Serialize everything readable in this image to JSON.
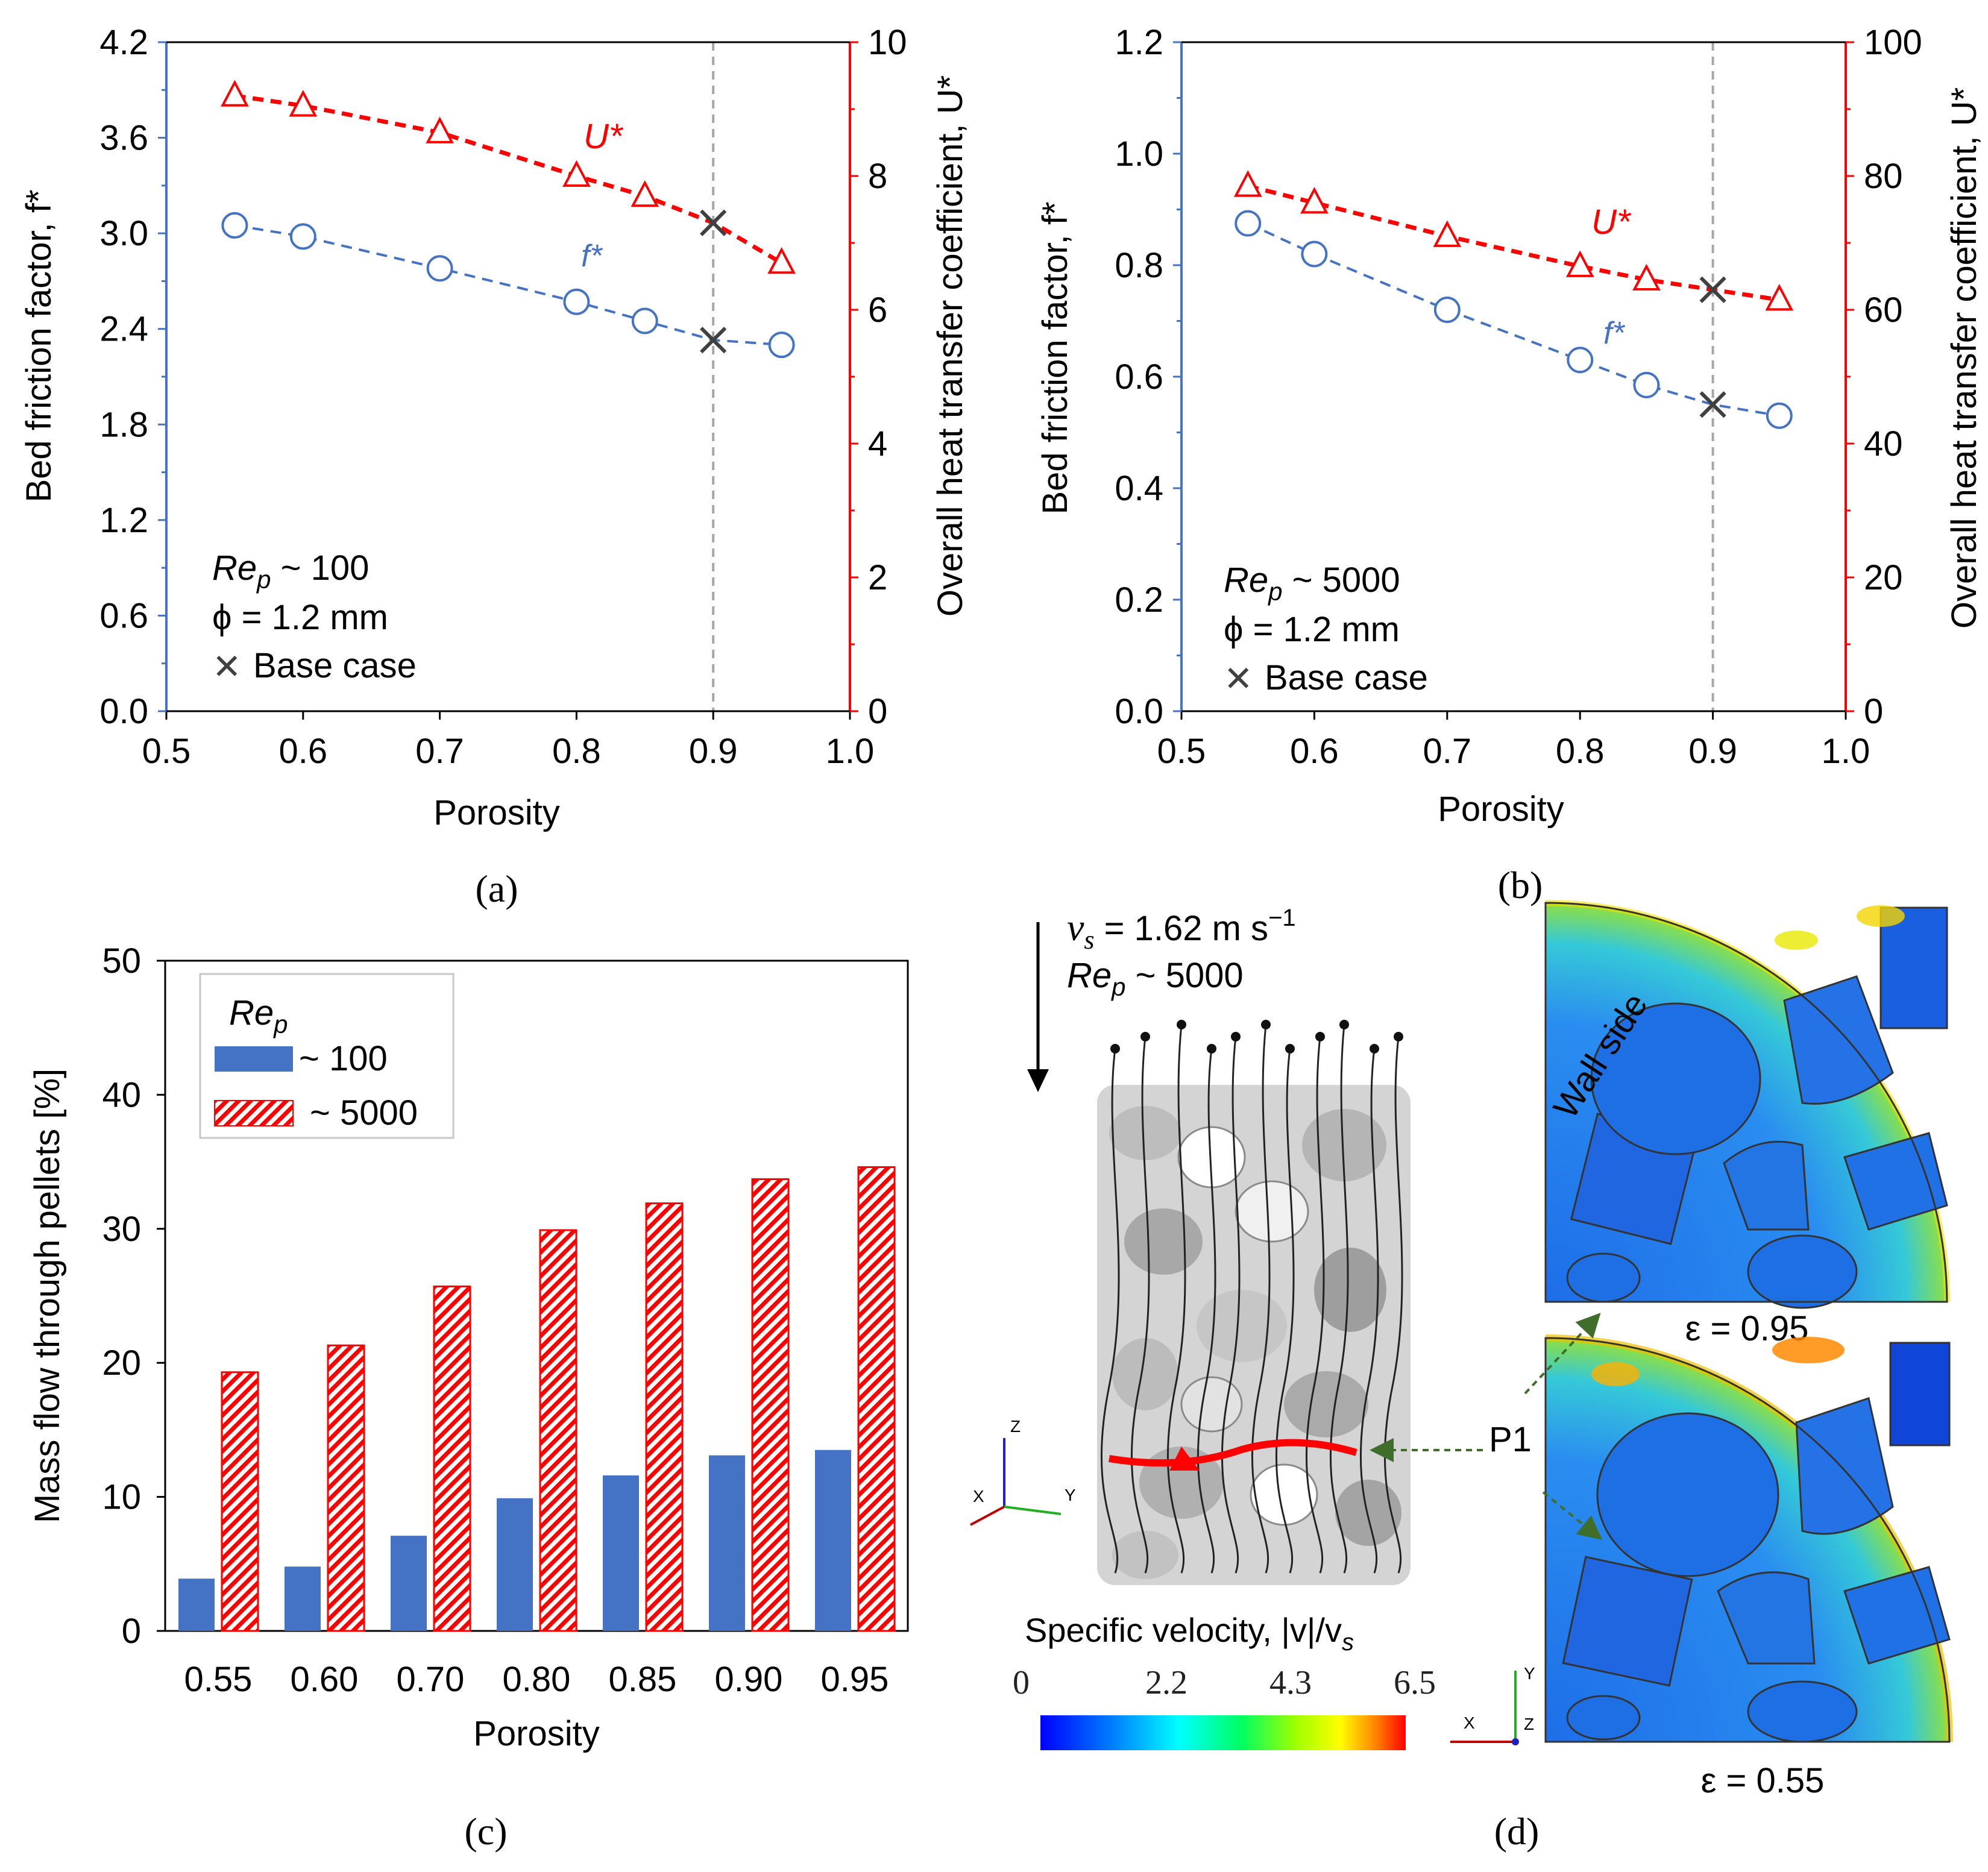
{
  "colors": {
    "blue": "#4472c4",
    "red": "#ff0000",
    "bar_blue": "#4472c4",
    "bar_red": "#ff0000",
    "base_case": "#404040",
    "guide": "#a6a6a6"
  },
  "chart_data": [
    {
      "panel": "a",
      "caption": "(a)",
      "type": "line",
      "xlabel": "Porosity",
      "ylabel_left": "Bed friction factor, f*",
      "ylabel_right": "Overall heat transfer coefficient, U*",
      "xlim": [
        0.5,
        1.0
      ],
      "x_ticks": [
        "0.5",
        "0.6",
        "0.7",
        "0.8",
        "0.9",
        "1.0"
      ],
      "ylim_left": [
        0,
        4.2
      ],
      "y_ticks_left": [
        "0.0",
        "0.6",
        "1.2",
        "1.8",
        "2.4",
        "3.0",
        "3.6",
        "4.2"
      ],
      "ylim_right": [
        0,
        10
      ],
      "y_ticks_right": [
        "0",
        "2",
        "4",
        "6",
        "8",
        "10"
      ],
      "series": [
        {
          "name": "f*",
          "axis": "left",
          "marker": "circle",
          "color": "#4472c4",
          "x": [
            0.55,
            0.6,
            0.7,
            0.8,
            0.85,
            0.95
          ],
          "values": [
            3.05,
            2.98,
            2.78,
            2.57,
            2.45,
            2.3
          ]
        },
        {
          "name": "U*",
          "axis": "right",
          "marker": "triangle",
          "color": "#ff0000",
          "x": [
            0.55,
            0.6,
            0.7,
            0.8,
            0.85,
            0.95
          ],
          "values": [
            9.2,
            9.05,
            8.65,
            8.0,
            7.7,
            6.7
          ]
        }
      ],
      "base_case": {
        "x": 0.9,
        "f": 2.33,
        "U": 7.3
      },
      "series_labels": {
        "f": "f*",
        "U": "U*"
      },
      "annotation": {
        "re_prefix": "Re",
        "re_sub": "p",
        "re_value": " ~ 100",
        "phi": "ϕ = 1.2 mm",
        "base_case": "Base case"
      }
    },
    {
      "panel": "b",
      "caption": "(b)",
      "type": "line",
      "xlabel": "Porosity",
      "ylabel_left": "Bed friction factor, f*",
      "ylabel_right": "Overall heat transfer coefficient, U*",
      "xlim": [
        0.5,
        1.0
      ],
      "x_ticks": [
        "0.5",
        "0.6",
        "0.7",
        "0.8",
        "0.9",
        "1.0"
      ],
      "ylim_left": [
        0,
        1.2
      ],
      "y_ticks_left": [
        "0.0",
        "0.2",
        "0.4",
        "0.6",
        "0.8",
        "1.0",
        "1.2"
      ],
      "ylim_right": [
        0,
        100
      ],
      "y_ticks_right": [
        "0",
        "20",
        "40",
        "60",
        "80",
        "100"
      ],
      "series": [
        {
          "name": "f*",
          "axis": "left",
          "marker": "circle",
          "color": "#4472c4",
          "x": [
            0.55,
            0.6,
            0.7,
            0.8,
            0.85,
            0.95
          ],
          "values": [
            0.875,
            0.82,
            0.72,
            0.63,
            0.585,
            0.53
          ]
        },
        {
          "name": "U*",
          "axis": "right",
          "marker": "triangle",
          "color": "#ff0000",
          "x": [
            0.55,
            0.6,
            0.7,
            0.8,
            0.85,
            0.95
          ],
          "values": [
            78.5,
            76.0,
            71.0,
            66.5,
            64.5,
            61.5
          ]
        }
      ],
      "base_case": {
        "x": 0.9,
        "f": 0.55,
        "U": 63.0
      },
      "series_labels": {
        "f": "f*",
        "U": "U*"
      },
      "annotation": {
        "re_prefix": "Re",
        "re_sub": "p",
        "re_value": " ~ 5000",
        "phi": "ϕ = 1.2 mm",
        "base_case": "Base case"
      }
    },
    {
      "panel": "c",
      "caption": "(c)",
      "type": "bar",
      "xlabel": "Porosity",
      "ylabel": "Mass flow through pellets [%]",
      "categories": [
        "0.55",
        "0.60",
        "0.70",
        "0.80",
        "0.85",
        "0.90",
        "0.95"
      ],
      "ylim": [
        0,
        50
      ],
      "y_ticks": [
        "0",
        "10",
        "20",
        "30",
        "40",
        "50"
      ],
      "legend": {
        "title_prefix": "Re",
        "title_sub": "p",
        "position": "top-left"
      },
      "series": [
        {
          "name": "~ 100",
          "color": "#4472c4",
          "pattern": "solid",
          "values": [
            3.9,
            4.8,
            7.1,
            9.9,
            11.6,
            13.1,
            13.5
          ]
        },
        {
          "name": "~ 5000",
          "color": "#ff0000",
          "pattern": "hatched",
          "values": [
            19.3,
            21.3,
            25.7,
            29.9,
            31.9,
            33.7,
            34.6
          ]
        }
      ]
    }
  ],
  "panel_d": {
    "caption": "(d)",
    "flow_velocity": "v",
    "flow_velocity_sub": "s",
    "flow_velocity_value": " = 1.62 m s",
    "flow_velocity_exp": "−1",
    "re_prefix": "Re",
    "re_sub": "p",
    "re_value": " ~ 5000",
    "colorbar_title": "Specific velocity, |v|/v",
    "colorbar_title_sub": "s",
    "colorbar_ticks": [
      "0",
      "2.2",
      "4.3",
      "6.5"
    ],
    "wall_side": "Wall side",
    "point_label": "P1",
    "eps_top": "ε = 0.95",
    "eps_bottom": "ε = 0.55",
    "axis_z": "Z",
    "axis_x": "X",
    "axis_y": "Y"
  }
}
